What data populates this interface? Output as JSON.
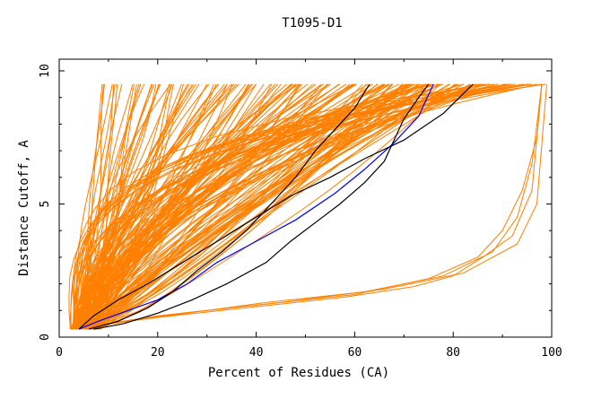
{
  "chart_data": {
    "type": "line",
    "title": "T1095-D1",
    "xlabel": "Percent of Residues (CA)",
    "ylabel": "Distance Cutoff, A",
    "xlim": [
      0,
      100
    ],
    "ylim": [
      0,
      10
    ],
    "x_ticks": [
      "0",
      "20",
      "40",
      "60",
      "80",
      "100"
    ],
    "y_ticks": [
      "0",
      "5",
      "10"
    ],
    "grid": false,
    "legend": "none",
    "colors": {
      "background": "#ffffff",
      "models": "#ff8000",
      "highlight_black": "#000000",
      "highlight_blue": "#0000ff"
    },
    "series_orange_count": 180,
    "series": [
      {
        "color": "#0000ff",
        "points": [
          [
            4,
            0.3
          ],
          [
            8,
            0.6
          ],
          [
            14,
            1.0
          ],
          [
            20,
            1.4
          ],
          [
            26,
            2.0
          ],
          [
            32,
            2.8
          ],
          [
            40,
            3.6
          ],
          [
            48,
            4.4
          ],
          [
            56,
            5.4
          ],
          [
            62,
            6.3
          ],
          [
            68,
            7.3
          ],
          [
            73,
            8.3
          ],
          [
            76,
            9.5
          ]
        ]
      },
      {
        "color": "#000000",
        "points": [
          [
            4,
            0.3
          ],
          [
            7,
            0.8
          ],
          [
            12,
            1.4
          ],
          [
            18,
            2.0
          ],
          [
            25,
            2.8
          ],
          [
            33,
            3.7
          ],
          [
            40,
            4.5
          ],
          [
            47,
            5.3
          ],
          [
            55,
            6.0
          ],
          [
            62,
            6.7
          ],
          [
            70,
            7.4
          ],
          [
            78,
            8.4
          ],
          [
            84,
            9.5
          ]
        ]
      },
      {
        "color": "#000000",
        "points": [
          [
            6,
            0.3
          ],
          [
            12,
            0.6
          ],
          [
            18,
            1.1
          ],
          [
            23,
            1.7
          ],
          [
            28,
            2.5
          ],
          [
            33,
            3.2
          ],
          [
            38,
            4.0
          ],
          [
            43,
            5.0
          ],
          [
            48,
            6.0
          ],
          [
            52,
            7.0
          ],
          [
            56,
            7.8
          ],
          [
            60,
            8.6
          ],
          [
            63,
            9.5
          ]
        ]
      },
      {
        "color": "#000000",
        "points": [
          [
            7,
            0.3
          ],
          [
            13,
            0.5
          ],
          [
            20,
            0.9
          ],
          [
            27,
            1.4
          ],
          [
            34,
            2.0
          ],
          [
            42,
            2.8
          ],
          [
            47,
            3.6
          ],
          [
            52,
            4.3
          ],
          [
            57,
            5.0
          ],
          [
            62,
            5.8
          ],
          [
            66,
            6.6
          ],
          [
            68,
            7.4
          ],
          [
            70,
            8.2
          ],
          [
            73,
            9.0
          ],
          [
            75,
            9.5
          ]
        ]
      }
    ]
  }
}
